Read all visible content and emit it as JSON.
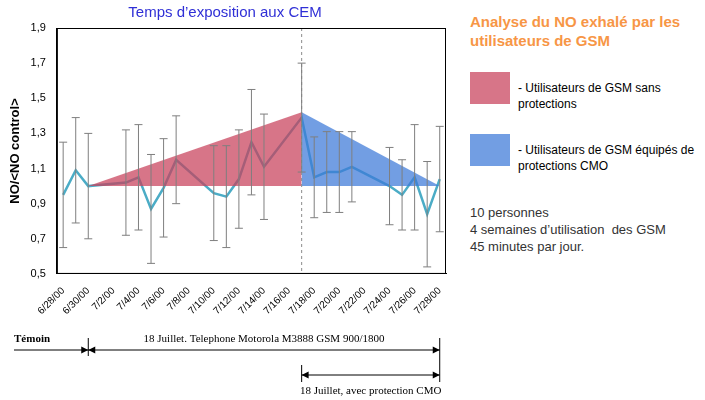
{
  "chart_data": {
    "type": "line",
    "title": "Temps d’exposition aux CEM",
    "y_label": "NO/<NO control>",
    "categories": [
      "6/28/00",
      null,
      "6/30/00",
      null,
      "7/2/00",
      null,
      "7/4/00",
      null,
      "7/6/00",
      null,
      "7/8/00",
      null,
      "7/10/00",
      null,
      "7/12/00",
      null,
      "7/14/00",
      null,
      "7/16/00",
      null,
      "7/18/00",
      null,
      "7/20/00",
      null,
      "7/22/00",
      null,
      "7/24/00",
      null,
      "7/26/00",
      null,
      "7/28/00"
    ],
    "ylim": [
      0.5,
      1.9
    ],
    "yticks": [
      {
        "value": 0.5,
        "label": "0,5"
      },
      {
        "value": 0.7,
        "label": "0,7"
      },
      {
        "value": 0.9,
        "label": "0,9"
      },
      {
        "value": 1.1,
        "label": "1,1"
      },
      {
        "value": 1.3,
        "label": "1,3"
      },
      {
        "value": 1.5,
        "label": "1,5"
      },
      {
        "value": 1.7,
        "label": "1,7"
      },
      {
        "value": 1.9,
        "label": "1,9"
      }
    ],
    "grid": false,
    "legend": "right",
    "legend_title": "Analyse du NO exhalé par les utilisateurs de GSM",
    "notes": [
      "10 personnes",
      "4 semaines d’utilisation  des GSM",
      "45 minutes par jour."
    ],
    "annotations": [
      "Témoin",
      "18 Juillet. Telephone Motorola M3888 GSM 900/1800",
      "18 Juillet, avec protection CMO"
    ],
    "series": [
      {
        "type": "line",
        "color": "#4bacc6",
        "marker": "none",
        "line_style": "solid",
        "values": [
          0.95,
          1.09,
          1.0,
          null,
          null,
          1.02,
          1.05,
          0.87,
          0.99,
          1.15,
          null,
          null,
          0.96,
          0.94,
          1.04,
          1.25,
          1.11,
          null,
          null,
          1.39,
          1.05,
          1.08,
          1.08,
          1.11,
          null,
          null,
          1.0,
          0.95,
          1.05,
          0.84,
          1.04
        ],
        "errors": [
          0.3,
          0.3,
          0.3,
          null,
          null,
          0.3,
          0.3,
          0.31,
          0.28,
          0.25,
          null,
          null,
          0.27,
          0.29,
          0.28,
          0.3,
          0.3,
          null,
          null,
          0.31,
          0.23,
          0.23,
          0.23,
          0.2,
          null,
          null,
          0.22,
          0.2,
          0.3,
          0.3,
          0.3
        ]
      },
      {
        "name": "- Utilisateurs de GSM sans protections",
        "type": "area",
        "color": "#c8405a",
        "values": [
          null,
          null,
          1.0,
          null,
          null,
          null,
          null,
          null,
          null,
          null,
          null,
          null,
          null,
          null,
          null,
          null,
          null,
          null,
          null,
          1.42,
          null,
          null,
          null,
          null,
          null,
          null,
          null,
          null,
          null,
          null,
          null
        ]
      },
      {
        "name": "- Utilisateurs de GSM équipés de protections CMO",
        "type": "area",
        "color": "#3c78d8",
        "values": [
          null,
          null,
          null,
          null,
          null,
          null,
          null,
          null,
          null,
          null,
          null,
          null,
          null,
          null,
          null,
          null,
          null,
          null,
          null,
          1.42,
          null,
          null,
          null,
          null,
          null,
          null,
          null,
          null,
          null,
          null,
          1.0
        ]
      }
    ]
  }
}
